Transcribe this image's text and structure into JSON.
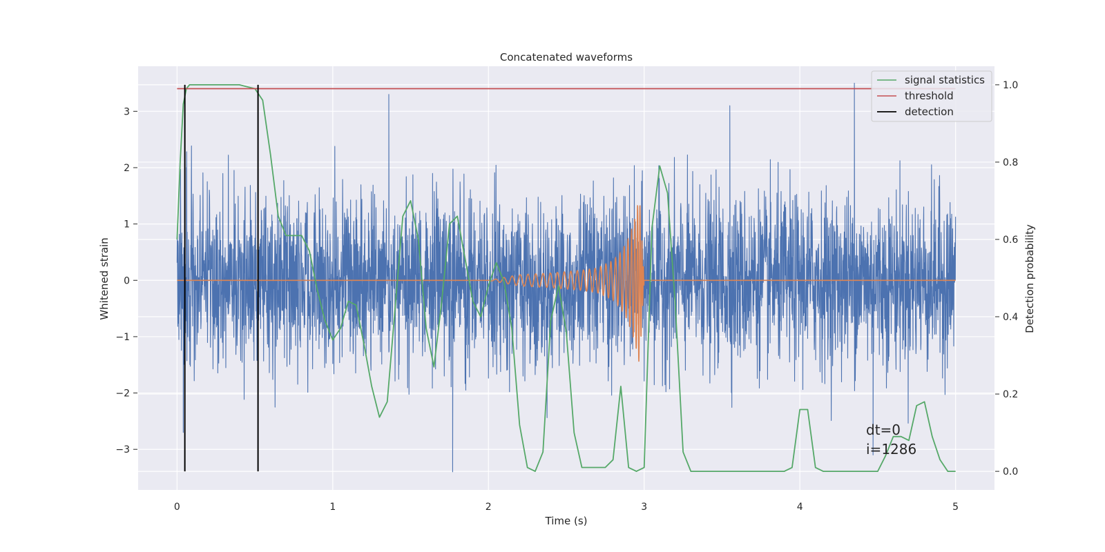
{
  "chart_data": {
    "type": "line",
    "title": "Concatenated waveforms",
    "xlabel": "Time (s)",
    "ylabel": "Whitened strain",
    "y2label": "Detection probability",
    "xlim": [
      -0.25,
      5.25
    ],
    "ylim": [
      -3.72,
      3.8
    ],
    "y2lim": [
      -0.048,
      1.048
    ],
    "xticks": [
      0,
      1,
      2,
      3,
      4,
      5
    ],
    "yticks": [
      -3,
      -2,
      -1,
      0,
      1,
      2,
      3
    ],
    "y2ticks": [
      0.0,
      0.2,
      0.4,
      0.6,
      0.8,
      1.0
    ],
    "xtick_labels": [
      "0",
      "1",
      "2",
      "3",
      "4",
      "5"
    ],
    "ytick_labels": [
      "−3",
      "−2",
      "−1",
      "0",
      "1",
      "2",
      "3"
    ],
    "y2tick_labels": [
      "0.0",
      "0.2",
      "0.4",
      "0.6",
      "0.8",
      "1.0"
    ],
    "grid": true,
    "legend_position": "top-right",
    "legend": [
      "signal statistics",
      "threshold",
      "detection"
    ],
    "annotations": [
      "dt=0",
      "i=1286"
    ],
    "colors": {
      "noise": "#4c72b0",
      "chirp": "#dd8452",
      "signal_statistics": "#55a868",
      "threshold": "#c44e52",
      "detection": "#000000",
      "axes_bg": "#eaeaf2",
      "grid": "#ffffff"
    },
    "series": [
      {
        "axis": "left",
        "color": "#4c72b0",
        "x_range": [
          0,
          5
        ],
        "note_values": "dense whitened noise, typical amplitude about +-2, peaks to about +-3.4",
        "peaks": [
          [
            0.04,
            -2.7
          ],
          [
            0.06,
            2.0
          ],
          [
            0.52,
            -3.3
          ],
          [
            1.36,
            3.3
          ],
          [
            1.77,
            -3.4
          ],
          [
            3.55,
            3.1
          ],
          [
            4.35,
            3.5
          ],
          [
            4.47,
            -3.1
          ]
        ]
      },
      {
        "axis": "left",
        "color": "#dd8452",
        "x": [
          0.0,
          2.0,
          2.2,
          2.4,
          2.6,
          2.7,
          2.8,
          2.85,
          2.9,
          2.94,
          2.97,
          3.0,
          5.0
        ],
        "envelope": [
          0.0,
          0.0,
          0.1,
          0.13,
          0.18,
          0.22,
          0.35,
          0.5,
          0.75,
          1.1,
          1.5,
          0.0,
          0.0
        ]
      },
      {
        "name": "signal statistics",
        "axis": "right",
        "color": "#55a868",
        "x": [
          0.0,
          0.02,
          0.04,
          0.06,
          0.08,
          0.1,
          0.15,
          0.2,
          0.3,
          0.4,
          0.45,
          0.5,
          0.55,
          0.6,
          0.65,
          0.7,
          0.75,
          0.8,
          0.85,
          0.9,
          0.95,
          1.0,
          1.05,
          1.1,
          1.15,
          1.2,
          1.25,
          1.3,
          1.35,
          1.4,
          1.45,
          1.5,
          1.55,
          1.6,
          1.65,
          1.7,
          1.75,
          1.8,
          1.85,
          1.9,
          1.95,
          2.0,
          2.05,
          2.1,
          2.15,
          2.2,
          2.25,
          2.3,
          2.35,
          2.4,
          2.45,
          2.5,
          2.55,
          2.6,
          2.65,
          2.7,
          2.75,
          2.8,
          2.85,
          2.9,
          2.95,
          3.0,
          3.05,
          3.1,
          3.15,
          3.2,
          3.25,
          3.3,
          3.5,
          3.7,
          3.9,
          3.95,
          4.0,
          4.05,
          4.1,
          4.15,
          4.2,
          4.5,
          4.55,
          4.6,
          4.65,
          4.7,
          4.75,
          4.8,
          4.85,
          4.9,
          4.95,
          5.0
        ],
        "values": [
          0.6,
          0.8,
          0.95,
          0.99,
          1.0,
          1.0,
          1.0,
          1.0,
          1.0,
          1.0,
          0.995,
          0.99,
          0.96,
          0.82,
          0.66,
          0.61,
          0.61,
          0.61,
          0.57,
          0.47,
          0.39,
          0.34,
          0.37,
          0.44,
          0.43,
          0.33,
          0.22,
          0.14,
          0.18,
          0.42,
          0.66,
          0.7,
          0.6,
          0.37,
          0.27,
          0.44,
          0.64,
          0.66,
          0.55,
          0.44,
          0.4,
          0.48,
          0.54,
          0.49,
          0.37,
          0.12,
          0.01,
          0.0,
          0.05,
          0.39,
          0.48,
          0.36,
          0.1,
          0.01,
          0.01,
          0.01,
          0.01,
          0.03,
          0.22,
          0.01,
          0.0,
          0.01,
          0.63,
          0.79,
          0.72,
          0.43,
          0.05,
          0.0,
          0.0,
          0.0,
          0.0,
          0.01,
          0.16,
          0.16,
          0.01,
          0.0,
          0.0,
          0.0,
          0.04,
          0.09,
          0.09,
          0.08,
          0.17,
          0.18,
          0.09,
          0.03,
          0.0,
          0.0
        ]
      },
      {
        "name": "threshold",
        "axis": "right",
        "color": "#c44e52",
        "x": [
          0,
          5
        ],
        "values": [
          0.99,
          0.99
        ]
      },
      {
        "name": "detection",
        "axis": "right",
        "color": "#000000",
        "segments": [
          [
            0.05,
            0.0,
            1.0
          ],
          [
            0.52,
            0.0,
            1.0
          ]
        ]
      }
    ]
  }
}
